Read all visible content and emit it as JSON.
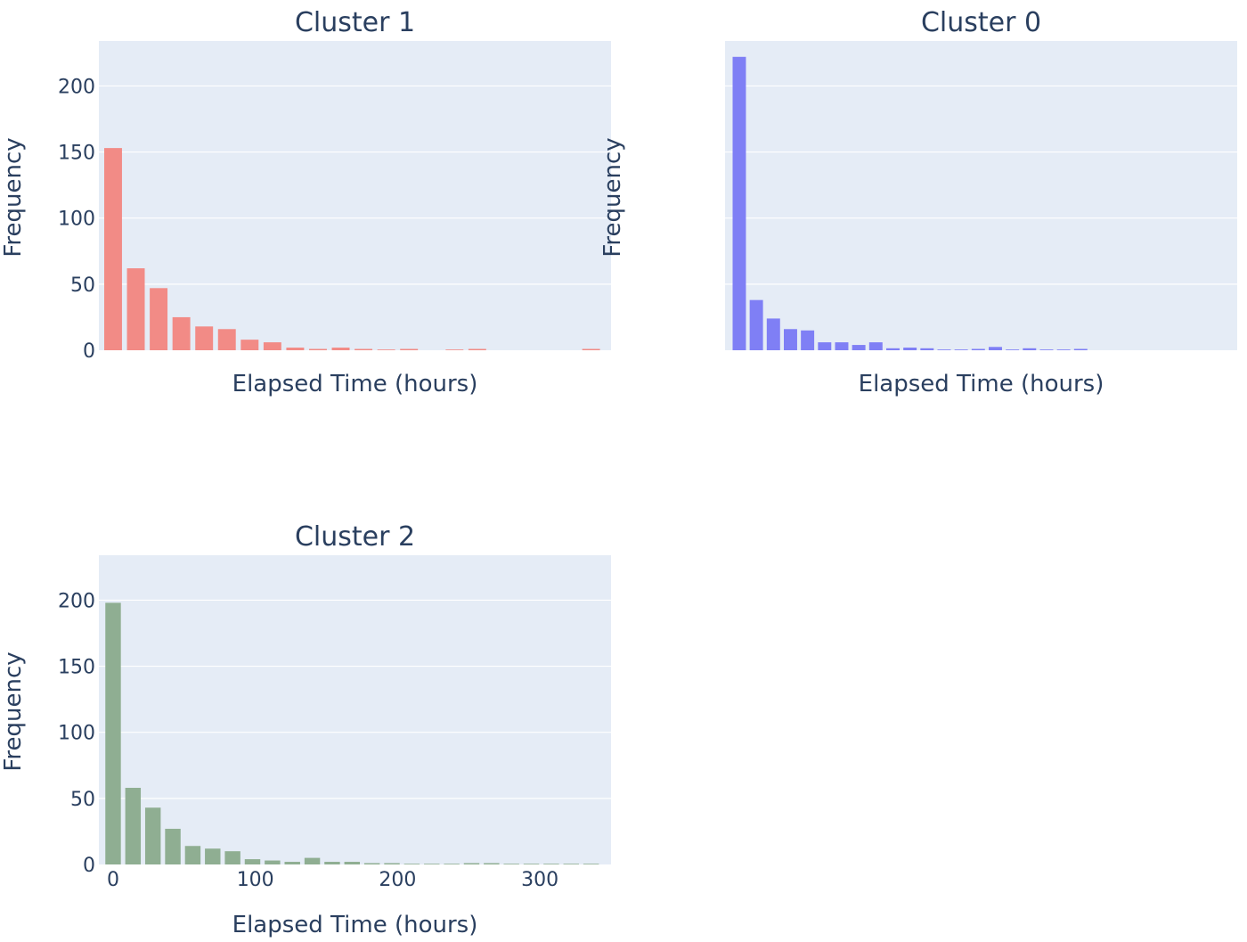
{
  "chart_data": [
    {
      "type": "bar",
      "title": "Cluster 1",
      "xlabel": "Elapsed Time (hours)",
      "ylabel": "Frequency",
      "color": "#f28b86",
      "bin_width": 16,
      "x": [
        0,
        16,
        32,
        48,
        64,
        80,
        96,
        112,
        128,
        144,
        160,
        176,
        192,
        208,
        224,
        240,
        256,
        272,
        288,
        304,
        320,
        336
      ],
      "values": [
        153,
        62,
        47,
        25,
        18,
        16,
        8,
        6,
        2,
        1,
        2,
        1,
        0.5,
        1,
        0,
        0.5,
        1,
        0,
        0,
        0,
        0,
        1
      ],
      "xlim": [
        -10,
        350
      ],
      "ylim": [
        0,
        234
      ],
      "yticks": [
        0,
        50,
        100,
        150,
        200
      ],
      "xticks": [],
      "grid": true
    },
    {
      "type": "bar",
      "title": "Cluster 0",
      "xlabel": "Elapsed Time (hours)",
      "ylabel": "Frequency",
      "color": "#7f7ff5",
      "bin_width": 12,
      "x": [
        0,
        12,
        24,
        36,
        48,
        60,
        72,
        84,
        96,
        108,
        120,
        132,
        144,
        156,
        168,
        180,
        192,
        204,
        216,
        228,
        240
      ],
      "values": [
        222,
        38,
        24,
        16,
        15,
        6,
        6,
        4,
        6,
        1.5,
        2,
        1.5,
        0.5,
        0.5,
        1,
        2.5,
        0.5,
        1.5,
        0.5,
        0.5,
        1
      ],
      "xlim": [
        -10,
        350
      ],
      "ylim": [
        0,
        234
      ],
      "yticks": [
        0,
        50,
        100,
        150,
        200
      ],
      "xticks": [],
      "grid": true
    },
    {
      "type": "bar",
      "title": "Cluster 2",
      "xlabel": "Elapsed Time (hours)",
      "ylabel": "Frequency",
      "color": "#8fae92",
      "bin_width": 14,
      "x": [
        0,
        14,
        28,
        42,
        56,
        70,
        84,
        98,
        112,
        126,
        140,
        154,
        168,
        182,
        196,
        210,
        224,
        238,
        252,
        266,
        280,
        294,
        308,
        322,
        336
      ],
      "values": [
        198,
        58,
        43,
        27,
        14,
        12,
        10,
        4,
        3,
        2,
        5,
        2,
        2,
        1,
        1,
        0.5,
        0.5,
        0.5,
        1,
        1,
        0.5,
        0.5,
        0.5,
        0.5,
        0.5
      ],
      "xlim": [
        -10,
        350
      ],
      "ylim": [
        0,
        234
      ],
      "yticks": [
        0,
        50,
        100,
        150,
        200
      ],
      "xticks": [
        0,
        100,
        200,
        300
      ],
      "grid": true
    }
  ]
}
